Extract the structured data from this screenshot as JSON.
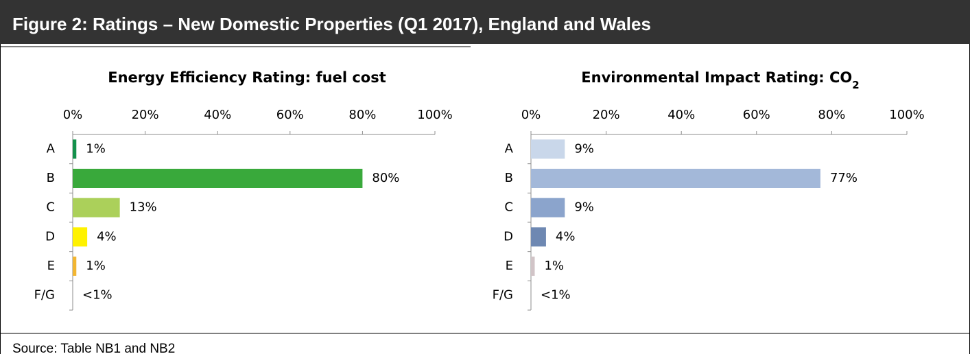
{
  "header": {
    "title": "Figure 2: Ratings – New Domestic Properties (Q1 2017), England and Wales"
  },
  "chart_data": [
    {
      "type": "bar",
      "orientation": "horizontal",
      "title": "Energy Efficiency Rating: fuel cost",
      "categories": [
        "A",
        "B",
        "C",
        "D",
        "E",
        "F/G"
      ],
      "values": [
        1,
        80,
        13,
        4,
        1,
        0
      ],
      "value_labels": [
        "1%",
        "80%",
        "13%",
        "4%",
        "1%",
        "<1%"
      ],
      "colors": [
        "#13914b",
        "#39a93b",
        "#abd05a",
        "#fff200",
        "#f2b632",
        "#d7262b"
      ],
      "xlim": [
        0,
        100
      ],
      "xticks": [
        {
          "value": 0,
          "label": "0%"
        },
        {
          "value": 20,
          "label": "20%"
        },
        {
          "value": 40,
          "label": "40%"
        },
        {
          "value": 60,
          "label": "60%"
        },
        {
          "value": 80,
          "label": "80%"
        },
        {
          "value": 100,
          "label": "100%"
        }
      ],
      "grid": false
    },
    {
      "type": "bar",
      "orientation": "horizontal",
      "title": "Environmental Impact Rating: CO",
      "title_subscript": "2",
      "categories": [
        "A",
        "B",
        "C",
        "D",
        "E",
        "F/G"
      ],
      "values": [
        9,
        77,
        9,
        4,
        1,
        0
      ],
      "value_labels": [
        "9%",
        "77%",
        "9%",
        "4%",
        "1%",
        "<1%"
      ],
      "colors": [
        "#c9d7ea",
        "#a3b8d9",
        "#8ba4cc",
        "#6e88b2",
        "#d1c4c7",
        "#b7a5aa"
      ],
      "xlim": [
        0,
        100
      ],
      "xticks": [
        {
          "value": 0,
          "label": "0%"
        },
        {
          "value": 20,
          "label": "20%"
        },
        {
          "value": 40,
          "label": "40%"
        },
        {
          "value": 60,
          "label": "60%"
        },
        {
          "value": 80,
          "label": "80%"
        },
        {
          "value": 100,
          "label": "100%"
        }
      ],
      "grid": false
    }
  ],
  "source": "Source: Table NB1 and NB2"
}
